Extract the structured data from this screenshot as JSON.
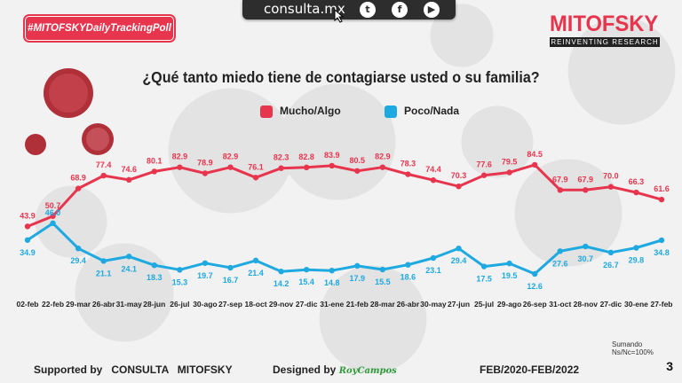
{
  "header": {
    "site": "consulta.mx",
    "hashtag": "#MITOFSKYDailyTrackingPoll",
    "brand_name": "MITOFSKY",
    "brand_tagline": "REINVENTING RESEARCH",
    "social_icons": [
      "twitter-icon",
      "facebook-icon",
      "youtube-icon"
    ]
  },
  "colors": {
    "mucho": "#e8354e",
    "poco": "#1ea9e1",
    "accent": "#e8354e"
  },
  "chart_data": {
    "type": "line",
    "title": "¿Qué tanto miedo tiene de contagiarse usted o su familia?",
    "legend_position": "top-center",
    "grid": false,
    "categories": [
      "02-feb",
      "22-feb",
      "29-mar",
      "26-abr",
      "31-may",
      "28-jun",
      "26-jul",
      "30-ago",
      "27-sep",
      "18-oct",
      "29-nov",
      "27-dic",
      "31-ene",
      "21-feb",
      "28-mar",
      "26-abr",
      "30-may",
      "27-jun",
      "25-jul",
      "29-ago",
      "26-sep",
      "31-oct",
      "28-nov",
      "27-dic",
      "30-ene",
      "27-feb"
    ],
    "ylim": [
      0,
      100
    ],
    "series": [
      {
        "name": "Mucho/Algo",
        "color": "#e8354e",
        "values": [
          43.9,
          50.7,
          68.9,
          77.4,
          74.6,
          80.1,
          82.9,
          78.9,
          82.9,
          76.1,
          82.3,
          82.8,
          83.9,
          80.5,
          82.9,
          78.3,
          74.4,
          70.3,
          77.6,
          79.5,
          84.5,
          67.9,
          67.9,
          70.0,
          66.3,
          61.6
        ]
      },
      {
        "name": "Poco/Nada",
        "color": "#1ea9e1",
        "values": [
          34.9,
          46.0,
          29.4,
          21.1,
          24.1,
          18.3,
          15.3,
          19.7,
          16.7,
          21.4,
          14.2,
          15.4,
          14.8,
          17.9,
          15.5,
          18.6,
          23.1,
          29.4,
          17.5,
          19.5,
          12.6,
          27.6,
          30.7,
          26.7,
          29.8,
          34.8
        ]
      }
    ]
  },
  "footer": {
    "supported_label": "Supported by",
    "supported_org": "CONSULTA   MITOFSKY",
    "designed_label": "Designed by",
    "designer": "RoyCampos",
    "period": "FEB/2020-FEB/2022",
    "note": "Sumando Ns/Nc=100%",
    "page": "3"
  }
}
